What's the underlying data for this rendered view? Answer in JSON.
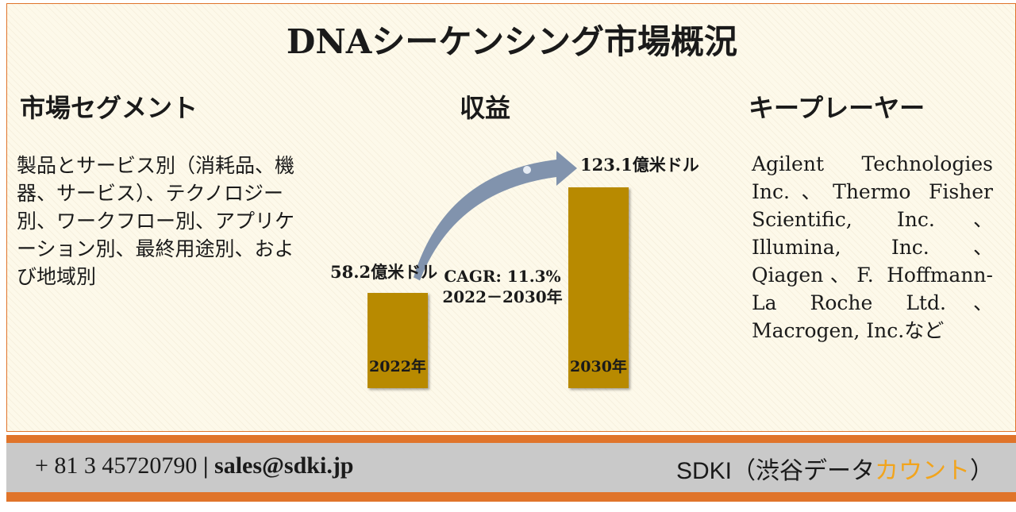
{
  "title": "DNAシーケンシング市場概況",
  "segments": {
    "heading": "市場セグメント",
    "text": "製品とサービス別（消耗品、機器、サービス）、テクノロジー別、ワークフロー別、アプリケーション別、最終用途別、および地域別"
  },
  "revenue": {
    "heading": "収益",
    "cagr_line1": "CAGR: 11.3%",
    "cagr_line2": "2022－2030年"
  },
  "key_players": {
    "heading": "キープレーヤー",
    "text": "Agilent Technologies Inc.、Thermo Fisher Scientific, Inc.、Illumina, Inc.、Qiagen、F. Hoffmann-La Roche Ltd.、Macrogen, Inc.など"
  },
  "chart_data": {
    "type": "bar",
    "categories": [
      "2022年",
      "2030年"
    ],
    "values": [
      58.2,
      123.1
    ],
    "value_labels": [
      "58.2億米ドル",
      "123.1億米ドル"
    ],
    "unit": "億米ドル",
    "cagr": "11.3%",
    "bar_color": "#b88a00",
    "arrow_color": "#8193ad"
  },
  "footer": {
    "phone": "+ 81 3 45720790",
    "separator": "|",
    "email": "sales@sdki.jp",
    "brand_main": "SDKI（渋谷データ",
    "brand_accent": "カウント",
    "brand_end": "）"
  },
  "colors": {
    "accent_orange": "#e0742a",
    "brand_accent": "#f2a41c",
    "footer_bg": "#c9c9c9"
  }
}
